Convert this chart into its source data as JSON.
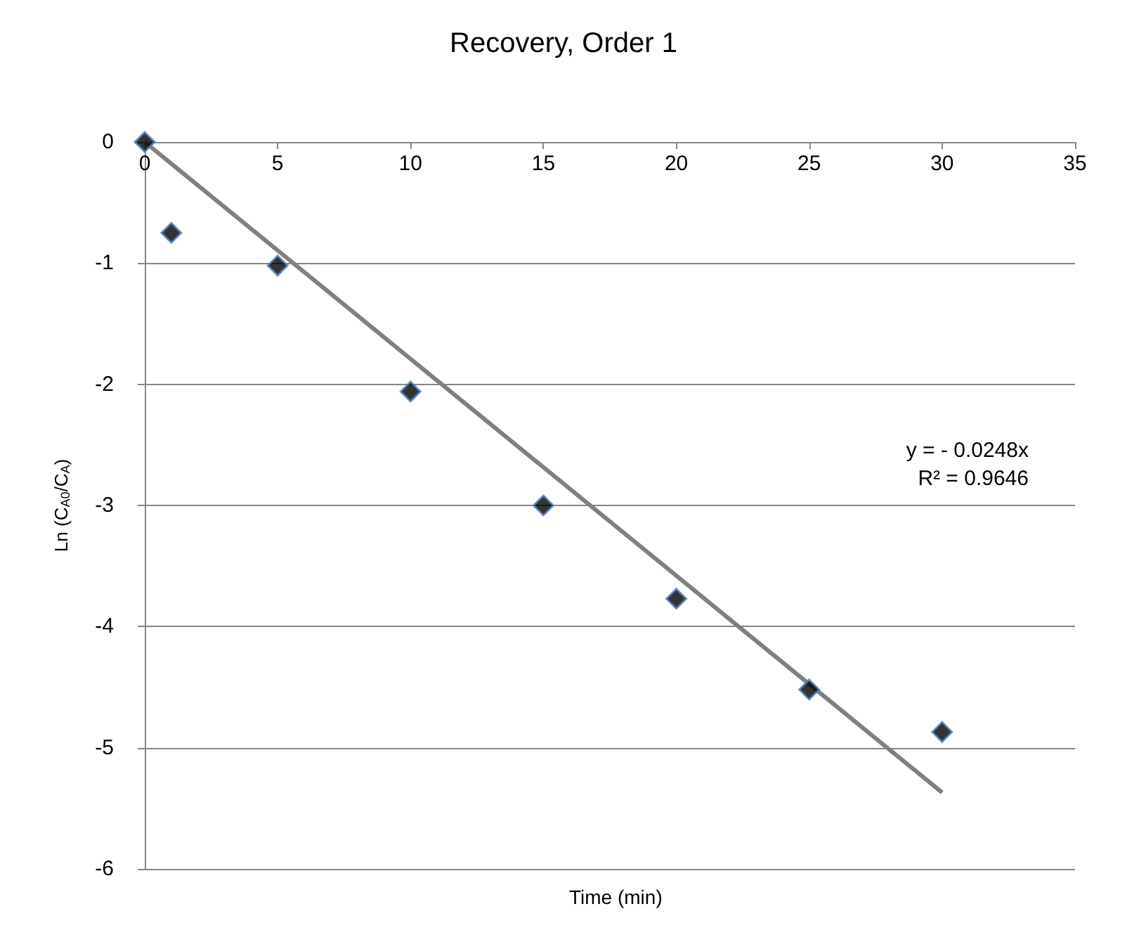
{
  "chart_data": {
    "type": "scatter",
    "title": "Recovery, Order 1",
    "xlabel": "Time (min)",
    "ylabel": "Ln (C$_{A0}$/C$_{A}$)",
    "xlim": [
      0,
      35
    ],
    "xticks": [
      0,
      5,
      10,
      15,
      20,
      25,
      30,
      35
    ],
    "ylim": [
      -6,
      0
    ],
    "yticks": [
      -6,
      -5,
      -4,
      -3,
      -2,
      -1,
      0
    ],
    "grid": "y",
    "marker": "diamond",
    "series": [
      {
        "color": "#000000",
        "x": [
          0,
          1,
          5,
          10,
          15,
          20,
          25,
          30
        ],
        "values": [
          0,
          -0.75,
          -1.02,
          -2.06,
          -3.0,
          -3.77,
          -4.52,
          -4.87
        ]
      },
      {
        "type": "line",
        "marker": "none",
        "color": "#808080",
        "x": [
          0,
          30
        ],
        "values": [
          0,
          -5.37
        ]
      }
    ],
    "annotations": [
      "y = - 0.0248x",
      "R² = 0.9646"
    ]
  }
}
